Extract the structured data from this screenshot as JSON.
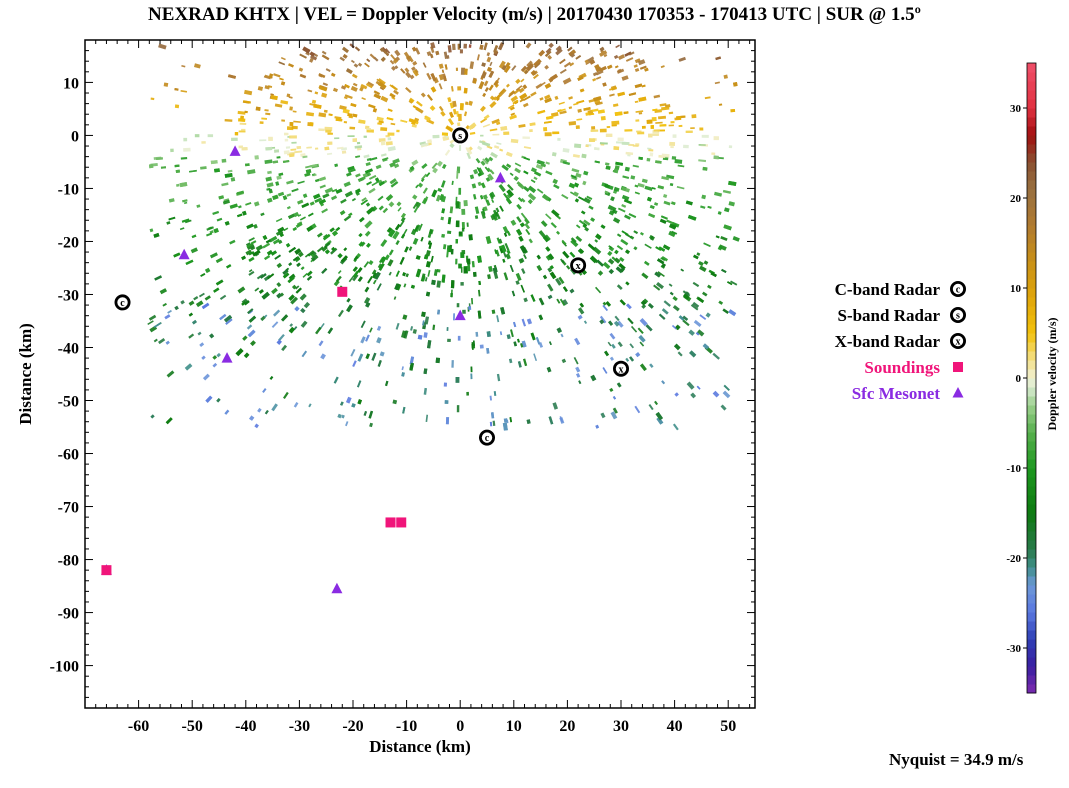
{
  "chart_data": {
    "type": "scatter",
    "title": "NEXRAD KHTX | VEL = Doppler Velocity (m/s) | 20170430 170353 - 170413 UTC | SUR @ 1.5º",
    "xlabel": "Distance (km)",
    "ylabel": "Distance (km)",
    "xlim": [
      -70,
      55
    ],
    "ylim": [
      -108,
      18
    ],
    "xticks": [
      -60,
      -50,
      -40,
      -30,
      -20,
      -10,
      0,
      10,
      20,
      30,
      40,
      50
    ],
    "yticks": [
      10,
      0,
      -10,
      -20,
      -30,
      -40,
      -50,
      -60,
      -70,
      -80,
      -90,
      -100
    ],
    "grid": false,
    "legend_placement": "right",
    "series": [
      {
        "name": "C-band Radar",
        "symbol": "C",
        "color": "#000000",
        "points": [
          [
            -63,
            -31.5
          ],
          [
            5,
            -57
          ]
        ]
      },
      {
        "name": "S-band Radar",
        "symbol": "S",
        "color": "#000000",
        "points": [
          [
            0,
            0
          ]
        ]
      },
      {
        "name": "X-band Radar",
        "symbol": "X",
        "color": "#000000",
        "points": [
          [
            22,
            -24.5
          ],
          [
            30,
            -44
          ]
        ]
      },
      {
        "name": "Soundings",
        "symbol": "square",
        "color": "#f0157a",
        "points": [
          [
            -22,
            -29.5
          ],
          [
            -13,
            -73
          ],
          [
            -11,
            -73
          ],
          [
            -66,
            -82
          ]
        ]
      },
      {
        "name": "Sfc Mesonet",
        "symbol": "triangle",
        "color": "#8a2be2",
        "points": [
          [
            -42,
            -3
          ],
          [
            7.5,
            -8
          ],
          [
            -51.5,
            -22.5
          ],
          [
            -43.5,
            -42
          ],
          [
            0,
            -34
          ],
          [
            -66,
            -82
          ],
          [
            -23,
            -85.5
          ]
        ]
      }
    ],
    "colorbar": {
      "label": "Doppler velocity (m/s)",
      "range": [
        -35,
        35
      ],
      "ticks": [
        30,
        20,
        10,
        0,
        -10,
        -20,
        -30
      ]
    },
    "annotation": "Nyquist = 34.9 m/s"
  }
}
